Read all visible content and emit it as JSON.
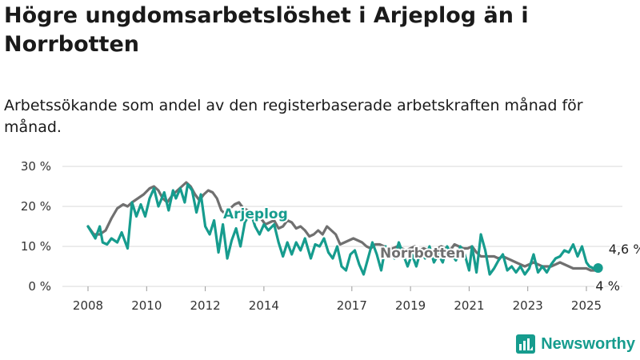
{
  "title": "Högre ungdomsarbetslöshet i Arjeplog än i Norrbotten",
  "subtitle": "Arbetssökande som andel av den registerbaserade arbetskraften månad för månad.",
  "footer": {
    "brand": "Newsworthy",
    "icon": "newsworthy-logo-icon"
  },
  "colors": {
    "arjeplog": "#169c8e",
    "norrbotten": "#707070",
    "grid": "#d9d9d9",
    "text": "#333333"
  },
  "chart_data": {
    "type": "line",
    "title": "Högre ungdomsarbetslöshet i Arjeplog än i Norrbotten",
    "subtitle": "Arbetssökande som andel av den registerbaserade arbetskraften månad för månad.",
    "xlabel": "",
    "ylabel": "",
    "y_ticks": [
      0,
      10,
      20,
      30
    ],
    "y_tick_labels": [
      "0 %",
      "10 %",
      "20 %",
      "30 %"
    ],
    "x_ticks": [
      2008,
      2010,
      2012,
      2014,
      2017,
      2019,
      2021,
      2023,
      2025
    ],
    "x_tick_labels": [
      "2008",
      "2010",
      "2012",
      "2014",
      "2017",
      "2019",
      "2021",
      "2023",
      "2025"
    ],
    "ylim": [
      0,
      30
    ],
    "grid": true,
    "legend": "direct labels on lines",
    "end_labels": {
      "arjeplog": "4,6 %",
      "norrbotten": "4 %"
    },
    "series": [
      {
        "name": "Arjeplog",
        "color": "#169c8e",
        "label_text": "Arjeplog",
        "points": [
          [
            2008,
            15
          ],
          [
            2008.25,
            12
          ],
          [
            2008.4,
            15
          ],
          [
            2008.5,
            11
          ],
          [
            2008.65,
            10.5
          ],
          [
            2008.8,
            12
          ],
          [
            2009,
            11
          ],
          [
            2009.15,
            13.5
          ],
          [
            2009.35,
            9.5
          ],
          [
            2009.5,
            21
          ],
          [
            2009.65,
            17.5
          ],
          [
            2009.8,
            20.5
          ],
          [
            2009.95,
            17.5
          ],
          [
            2010.1,
            22
          ],
          [
            2010.25,
            24.5
          ],
          [
            2010.4,
            20
          ],
          [
            2010.6,
            23.5
          ],
          [
            2010.75,
            19
          ],
          [
            2010.9,
            24
          ],
          [
            2011,
            22
          ],
          [
            2011.15,
            24.5
          ],
          [
            2011.3,
            21
          ],
          [
            2011.4,
            25.5
          ],
          [
            2011.55,
            24
          ],
          [
            2011.7,
            18.5
          ],
          [
            2011.85,
            23
          ],
          [
            2012,
            15
          ],
          [
            2012.15,
            13
          ],
          [
            2012.3,
            16.5
          ],
          [
            2012.45,
            8.5
          ],
          [
            2012.6,
            15.5
          ],
          [
            2012.75,
            7
          ],
          [
            2012.9,
            11.5
          ],
          [
            2013.05,
            14.5
          ],
          [
            2013.2,
            10
          ],
          [
            2013.35,
            16
          ],
          [
            2013.55,
            18.5
          ],
          [
            2013.7,
            15
          ],
          [
            2013.85,
            13
          ],
          [
            2014,
            15.5
          ],
          [
            2014.15,
            14
          ],
          [
            2014.35,
            15.5
          ],
          [
            2014.5,
            11
          ],
          [
            2014.65,
            7.5
          ],
          [
            2014.8,
            11
          ],
          [
            2014.95,
            8
          ],
          [
            2015.1,
            11
          ],
          [
            2015.25,
            9
          ],
          [
            2015.4,
            12
          ],
          [
            2015.6,
            7
          ],
          [
            2015.75,
            10.5
          ],
          [
            2015.9,
            10
          ],
          [
            2016.05,
            12
          ],
          [
            2016.2,
            8.5
          ],
          [
            2016.35,
            7
          ],
          [
            2016.5,
            10
          ],
          [
            2016.65,
            5
          ],
          [
            2016.8,
            4
          ],
          [
            2016.95,
            8
          ],
          [
            2017.1,
            9
          ],
          [
            2017.25,
            5.5
          ],
          [
            2017.4,
            3
          ],
          [
            2017.55,
            7
          ],
          [
            2017.7,
            11
          ],
          [
            2017.85,
            8
          ],
          [
            2018,
            4
          ],
          [
            2018.15,
            10
          ],
          [
            2018.3,
            9
          ],
          [
            2018.45,
            7
          ],
          [
            2018.6,
            11
          ],
          [
            2018.75,
            8
          ],
          [
            2018.9,
            5
          ],
          [
            2019.05,
            8
          ],
          [
            2019.2,
            5
          ],
          [
            2019.35,
            9
          ],
          [
            2019.5,
            7
          ],
          [
            2019.65,
            10
          ],
          [
            2019.8,
            6
          ],
          [
            2019.95,
            8
          ],
          [
            2020.1,
            6
          ],
          [
            2020.25,
            10
          ],
          [
            2020.4,
            8
          ],
          [
            2020.55,
            6.5
          ],
          [
            2020.7,
            10
          ],
          [
            2020.85,
            8
          ],
          [
            2021,
            4
          ],
          [
            2021.1,
            10
          ],
          [
            2021.25,
            3.5
          ],
          [
            2021.4,
            13
          ],
          [
            2021.55,
            9
          ],
          [
            2021.7,
            3
          ],
          [
            2021.85,
            4.5
          ],
          [
            2022,
            6.5
          ],
          [
            2022.15,
            8
          ],
          [
            2022.3,
            4
          ],
          [
            2022.45,
            5
          ],
          [
            2022.6,
            3.5
          ],
          [
            2022.75,
            5
          ],
          [
            2022.9,
            3
          ],
          [
            2023.05,
            4.5
          ],
          [
            2023.2,
            8
          ],
          [
            2023.35,
            3.5
          ],
          [
            2023.5,
            5
          ],
          [
            2023.65,
            3.5
          ],
          [
            2023.8,
            5.5
          ],
          [
            2023.95,
            7
          ],
          [
            2024.1,
            7.5
          ],
          [
            2024.25,
            9
          ],
          [
            2024.4,
            8.5
          ],
          [
            2024.55,
            10.5
          ],
          [
            2024.7,
            7.5
          ],
          [
            2024.85,
            10
          ],
          [
            2025,
            6
          ],
          [
            2025.1,
            5
          ],
          [
            2025.25,
            4.5
          ],
          [
            2025.4,
            4.6
          ]
        ]
      },
      {
        "name": "Norrbotten",
        "color": "#707070",
        "label_text": "Norrbotten",
        "points": [
          [
            2008,
            15
          ],
          [
            2008.2,
            13
          ],
          [
            2008.4,
            13
          ],
          [
            2008.6,
            14
          ],
          [
            2008.8,
            17
          ],
          [
            2009,
            19.5
          ],
          [
            2009.2,
            20.5
          ],
          [
            2009.35,
            20
          ],
          [
            2009.5,
            21
          ],
          [
            2009.7,
            22
          ],
          [
            2009.9,
            23
          ],
          [
            2010.1,
            24.5
          ],
          [
            2010.25,
            25
          ],
          [
            2010.4,
            24
          ],
          [
            2010.55,
            22
          ],
          [
            2010.7,
            21
          ],
          [
            2010.9,
            23
          ],
          [
            2011.05,
            24
          ],
          [
            2011.2,
            25
          ],
          [
            2011.35,
            26
          ],
          [
            2011.5,
            25
          ],
          [
            2011.65,
            23
          ],
          [
            2011.8,
            21.5
          ],
          [
            2011.95,
            23
          ],
          [
            2012.1,
            24
          ],
          [
            2012.25,
            23.5
          ],
          [
            2012.4,
            22
          ],
          [
            2012.55,
            19
          ],
          [
            2012.7,
            18
          ],
          [
            2012.85,
            19.5
          ],
          [
            2013,
            20.5
          ],
          [
            2013.15,
            21
          ],
          [
            2013.3,
            19.5
          ],
          [
            2013.45,
            19
          ],
          [
            2013.6,
            17.5
          ],
          [
            2013.75,
            18.5
          ],
          [
            2013.9,
            17
          ],
          [
            2014.05,
            15.5
          ],
          [
            2014.2,
            16
          ],
          [
            2014.35,
            16.5
          ],
          [
            2014.5,
            14.5
          ],
          [
            2014.65,
            15
          ],
          [
            2014.8,
            16.5
          ],
          [
            2014.95,
            16
          ],
          [
            2015.1,
            14.5
          ],
          [
            2015.25,
            15
          ],
          [
            2015.4,
            14
          ],
          [
            2015.55,
            12.5
          ],
          [
            2015.7,
            13
          ],
          [
            2015.85,
            14
          ],
          [
            2016,
            13
          ],
          [
            2016.15,
            15
          ],
          [
            2016.3,
            14
          ],
          [
            2016.45,
            13
          ],
          [
            2016.6,
            10.5
          ],
          [
            2016.75,
            11
          ],
          [
            2016.9,
            11.5
          ],
          [
            2017.05,
            12
          ],
          [
            2017.2,
            11.5
          ],
          [
            2017.35,
            11
          ],
          [
            2017.5,
            10
          ],
          [
            2017.65,
            9.5
          ],
          [
            2017.8,
            10.5
          ],
          [
            2017.95,
            10.5
          ],
          [
            2018.1,
            10
          ],
          [
            2018.25,
            9.5
          ],
          [
            2018.4,
            9.5
          ],
          [
            2018.55,
            10
          ],
          [
            2018.7,
            9.5
          ],
          [
            2018.85,
            9
          ],
          [
            2019,
            9.5
          ],
          [
            2019.15,
            10
          ],
          [
            2019.3,
            9
          ],
          [
            2019.45,
            9.5
          ],
          [
            2019.6,
            9
          ],
          [
            2019.75,
            8.5
          ],
          [
            2019.9,
            9.5
          ],
          [
            2020.05,
            10
          ],
          [
            2020.2,
            9.5
          ],
          [
            2020.35,
            9
          ],
          [
            2020.5,
            10.5
          ],
          [
            2020.65,
            10
          ],
          [
            2020.8,
            9.5
          ],
          [
            2020.95,
            9.5
          ],
          [
            2021.1,
            10
          ],
          [
            2021.25,
            8.5
          ],
          [
            2021.4,
            7.5
          ],
          [
            2021.55,
            7.5
          ],
          [
            2021.7,
            7.5
          ],
          [
            2021.85,
            7.5
          ],
          [
            2022,
            7
          ],
          [
            2022.15,
            7.5
          ],
          [
            2022.3,
            7
          ],
          [
            2022.45,
            6.5
          ],
          [
            2022.6,
            6
          ],
          [
            2022.75,
            5.5
          ],
          [
            2022.9,
            5
          ],
          [
            2023.05,
            5.5
          ],
          [
            2023.2,
            6
          ],
          [
            2023.35,
            5.5
          ],
          [
            2023.5,
            5
          ],
          [
            2023.65,
            5
          ],
          [
            2023.8,
            5
          ],
          [
            2023.95,
            5.5
          ],
          [
            2024.1,
            6
          ],
          [
            2024.25,
            5.5
          ],
          [
            2024.4,
            5
          ],
          [
            2024.55,
            4.5
          ],
          [
            2024.7,
            4.5
          ],
          [
            2024.85,
            4.5
          ],
          [
            2025,
            4.5
          ],
          [
            2025.15,
            4
          ],
          [
            2025.3,
            4
          ],
          [
            2025.4,
            4
          ]
        ]
      }
    ]
  }
}
